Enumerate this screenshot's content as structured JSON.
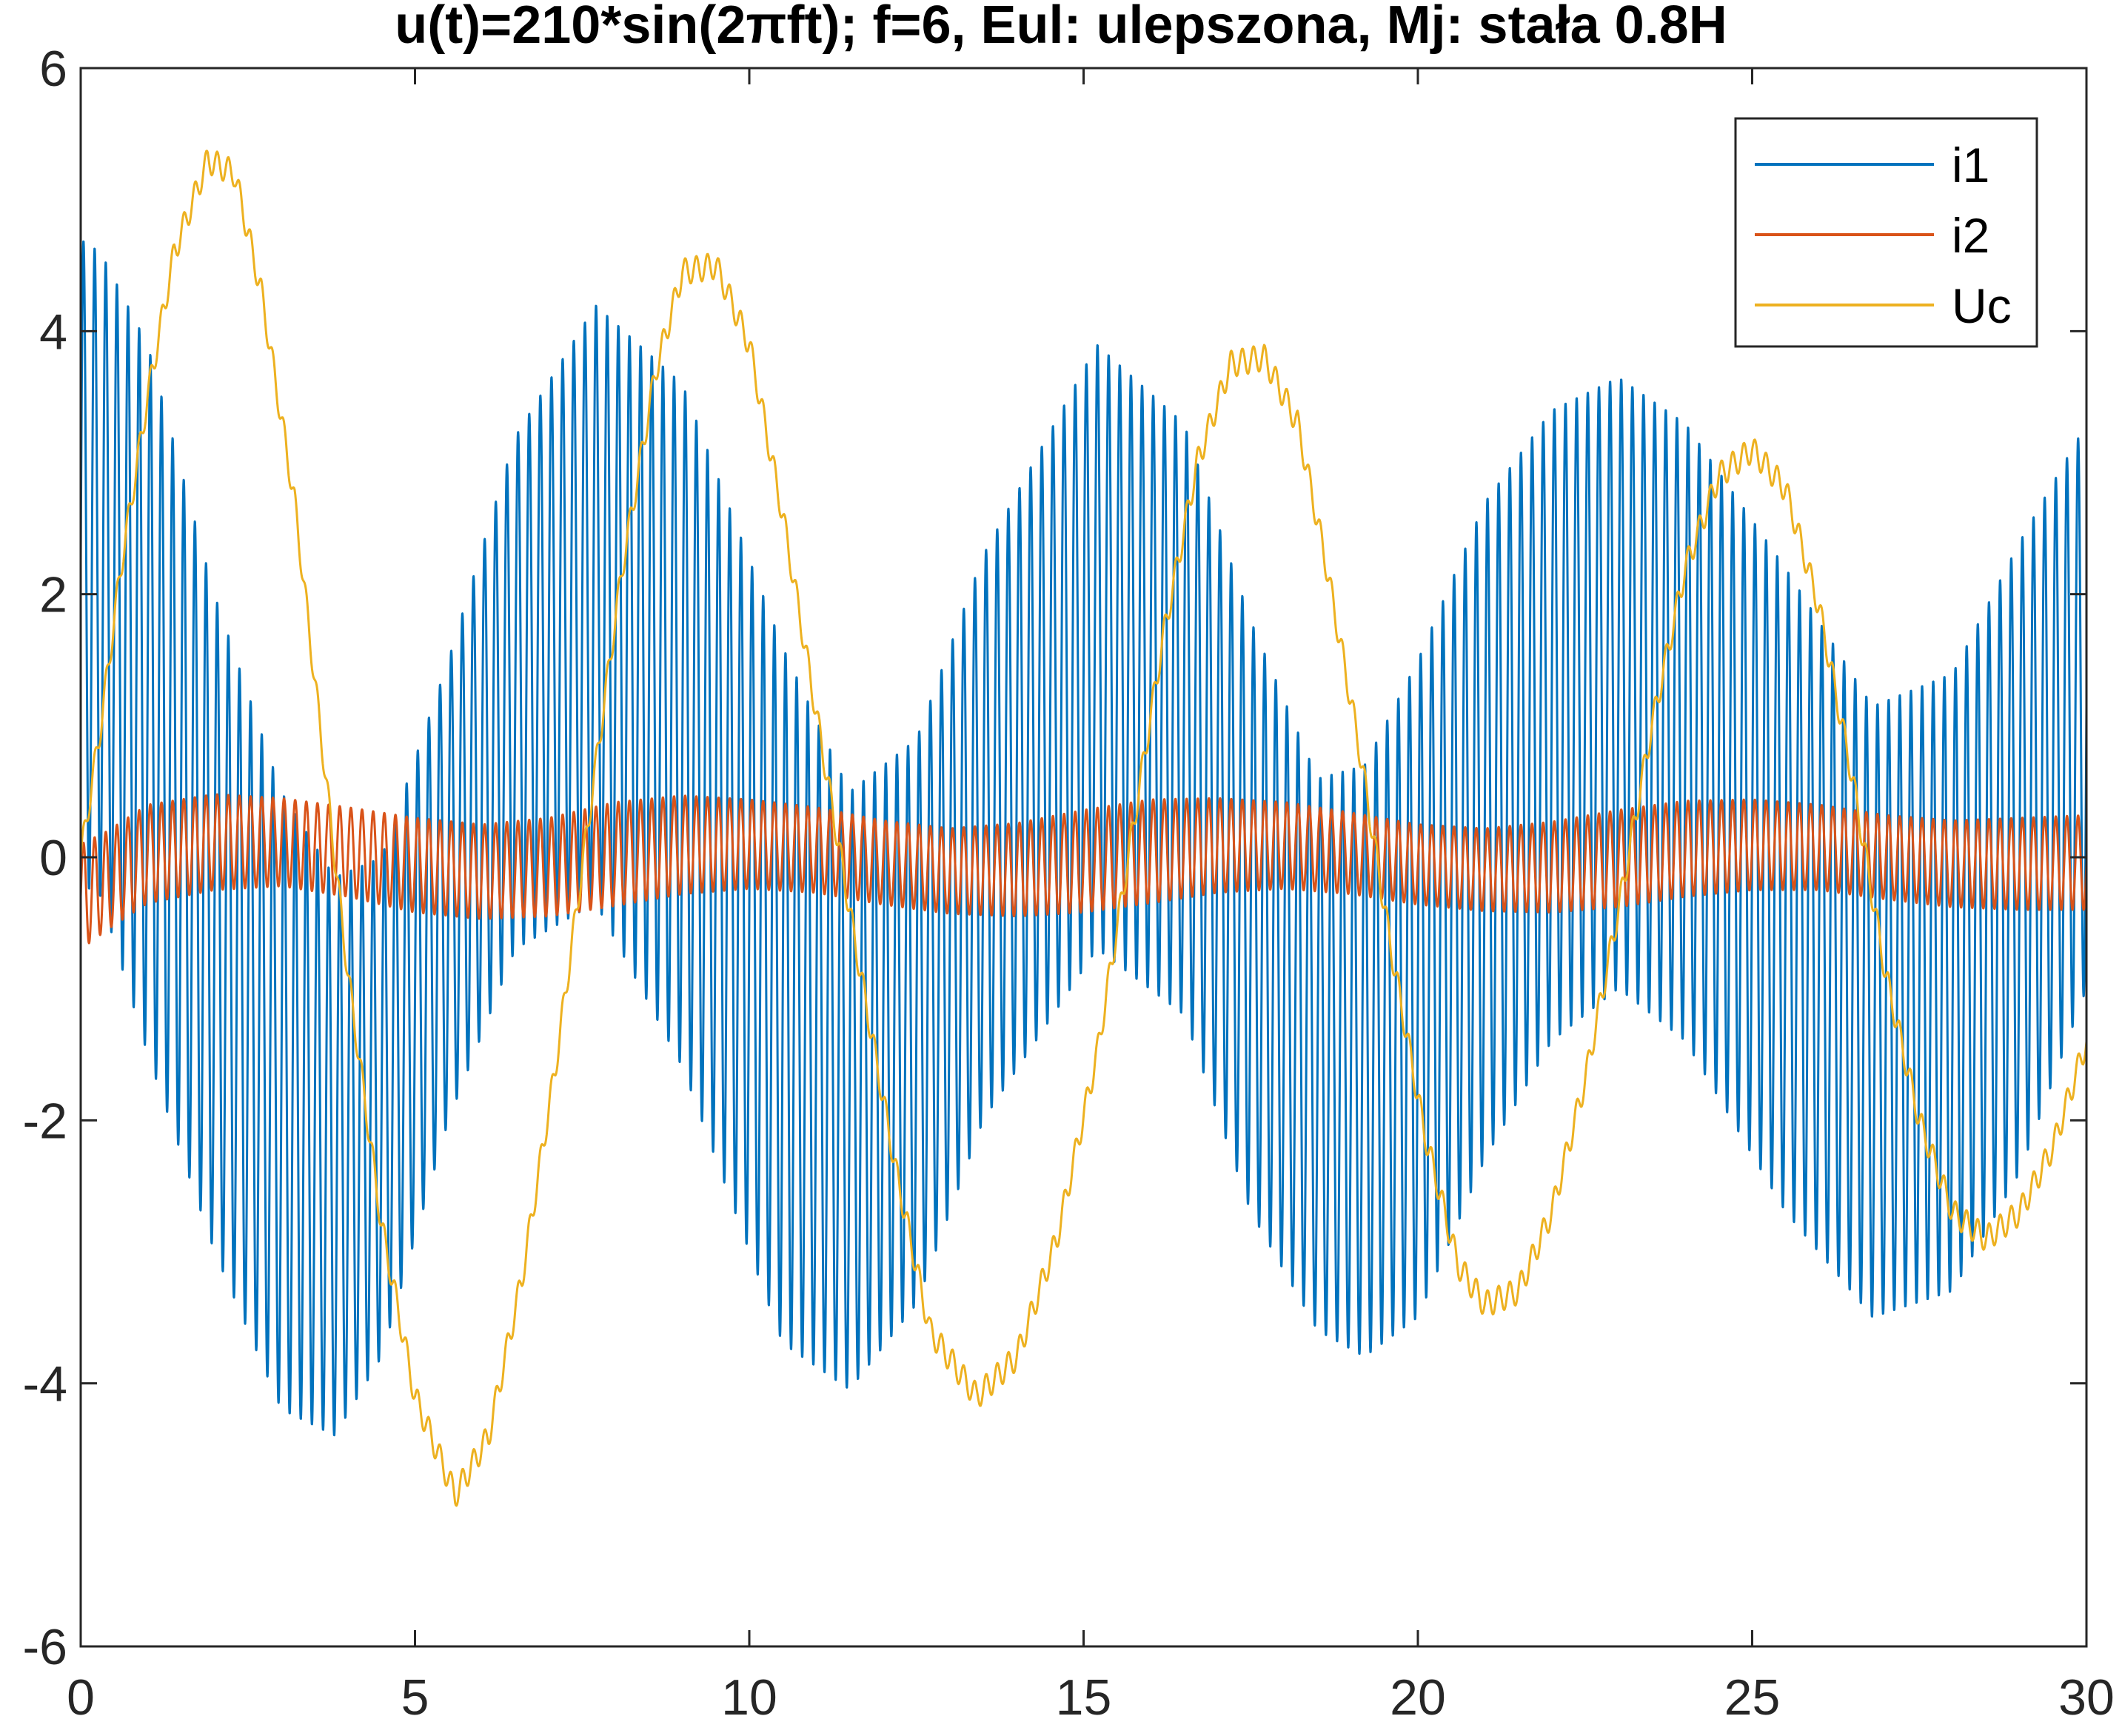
{
  "chart_data": {
    "type": "line",
    "title": "u(t)=210*sin(2πft); f=6, Eul: ulepszona, Mj: stała 0.8H",
    "xlabel": "",
    "ylabel": "",
    "xlim": [
      0,
      30
    ],
    "ylim": [
      -6,
      6
    ],
    "xticks": [
      0,
      5,
      10,
      15,
      20,
      25,
      30
    ],
    "yticks": [
      -6,
      -4,
      -2,
      0,
      2,
      4,
      6
    ],
    "xtick_labels": [
      "0",
      "5",
      "10",
      "15",
      "20",
      "25",
      "30"
    ],
    "ytick_labels": [
      "-6",
      "-4",
      "-2",
      "0",
      "2",
      "4",
      "6"
    ],
    "grid": false,
    "legend_position": "top-right",
    "series": [
      {
        "name": "i1",
        "color": "#0072BD",
        "oscillation_frequency": 6,
        "envelope_t": [
          0,
          0.3,
          1.0,
          2.0,
          3.0,
          3.8,
          4.5,
          5.5,
          6.5,
          7.7,
          9.0,
          10.5,
          11.5,
          12.5,
          13.5,
          15.2,
          16.5,
          17.5,
          18.5,
          19.2,
          20.0,
          21.0,
          22.0,
          23.0,
          24.0,
          25.5,
          26.8,
          28.0,
          29.0,
          30.0
        ],
        "envelope_upper": [
          4.7,
          4.6,
          3.9,
          2.0,
          0.5,
          -0.15,
          0.0,
          1.5,
          3.2,
          4.2,
          3.6,
          1.6,
          0.5,
          0.9,
          2.3,
          3.9,
          3.3,
          1.8,
          0.6,
          0.7,
          1.5,
          2.7,
          3.4,
          3.65,
          3.3,
          2.2,
          1.15,
          1.4,
          2.4,
          3.3
        ],
        "envelope_lower": [
          -0.2,
          -0.3,
          -1.5,
          -3.0,
          -4.2,
          -4.4,
          -3.8,
          -2.0,
          -0.7,
          -0.35,
          -1.6,
          -3.7,
          -4.05,
          -3.4,
          -2.0,
          -0.7,
          -1.2,
          -2.7,
          -3.6,
          -3.8,
          -3.5,
          -2.3,
          -1.4,
          -1.0,
          -1.4,
          -2.7,
          -3.5,
          -3.3,
          -2.4,
          -1.0
        ]
      },
      {
        "name": "i2",
        "color": "#D95319",
        "oscillation_frequency": 6,
        "envelope_t": [
          0,
          0.4,
          1.0,
          2.0,
          3.0,
          4.0,
          5.0,
          6.0,
          7.0,
          8.0,
          9.0,
          10.0,
          11.0,
          12.0,
          13.0,
          14.0,
          15.0,
          16.0,
          17.0,
          18.0,
          19.0,
          20.0,
          21.0,
          22.0,
          23.0,
          24.0,
          25.0,
          26.0,
          27.0,
          28.0,
          29.0,
          30.0
        ],
        "envelope_upper": [
          0.1,
          0.2,
          0.4,
          0.48,
          0.45,
          0.38,
          0.3,
          0.25,
          0.3,
          0.42,
          0.47,
          0.44,
          0.38,
          0.28,
          0.22,
          0.26,
          0.36,
          0.44,
          0.45,
          0.42,
          0.34,
          0.25,
          0.22,
          0.27,
          0.36,
          0.43,
          0.44,
          0.4,
          0.32,
          0.28,
          0.3,
          0.32
        ],
        "envelope_lower": [
          -0.7,
          -0.55,
          -0.35,
          -0.25,
          -0.22,
          -0.3,
          -0.42,
          -0.47,
          -0.45,
          -0.37,
          -0.28,
          -0.24,
          -0.27,
          -0.36,
          -0.43,
          -0.45,
          -0.42,
          -0.35,
          -0.27,
          -0.24,
          -0.28,
          -0.36,
          -0.41,
          -0.42,
          -0.38,
          -0.3,
          -0.25,
          -0.25,
          -0.32,
          -0.38,
          -0.4,
          -0.4
        ]
      },
      {
        "name": "Uc",
        "color": "#EDB120",
        "ripple_frequency": 6,
        "ripple_amplitude": 0.1,
        "t": [
          0,
          0.3,
          0.6,
          1.0,
          1.4,
          1.9,
          2.3,
          2.7,
          3.2,
          3.6,
          4.0,
          4.5,
          5.0,
          5.6,
          6.1,
          6.6,
          7.1,
          7.6,
          8.1,
          8.6,
          9.0,
          9.5,
          10.0,
          10.5,
          11.0,
          11.6,
          12.2,
          12.7,
          13.4,
          14.0,
          14.6,
          15.2,
          15.7,
          16.2,
          16.7,
          17.2,
          17.7,
          18.2,
          18.6,
          19.1,
          19.6,
          20.1,
          20.6,
          21.0,
          21.5,
          22.0,
          22.5,
          23.0,
          23.5,
          24.0,
          24.5,
          25.0,
          25.5,
          26.0,
          26.5,
          27.0,
          27.5,
          28.0,
          28.5,
          29.0,
          29.5,
          30.0
        ],
        "values": [
          0.0,
          1.0,
          2.2,
          3.5,
          4.6,
          5.3,
          5.2,
          4.3,
          2.7,
          0.9,
          -0.9,
          -2.8,
          -4.1,
          -4.85,
          -4.4,
          -3.2,
          -1.6,
          0.3,
          2.2,
          3.7,
          4.45,
          4.5,
          3.9,
          2.6,
          1.1,
          -0.7,
          -2.4,
          -3.6,
          -4.1,
          -3.8,
          -2.9,
          -1.5,
          0.1,
          1.7,
          3.0,
          3.75,
          3.8,
          3.3,
          2.3,
          0.9,
          -0.7,
          -2.1,
          -3.1,
          -3.4,
          -3.3,
          -2.7,
          -1.7,
          -0.4,
          1.0,
          2.2,
          2.9,
          3.1,
          2.8,
          1.9,
          0.6,
          -0.9,
          -2.0,
          -2.7,
          -2.9,
          -2.7,
          -2.2,
          -1.4
        ]
      }
    ]
  }
}
